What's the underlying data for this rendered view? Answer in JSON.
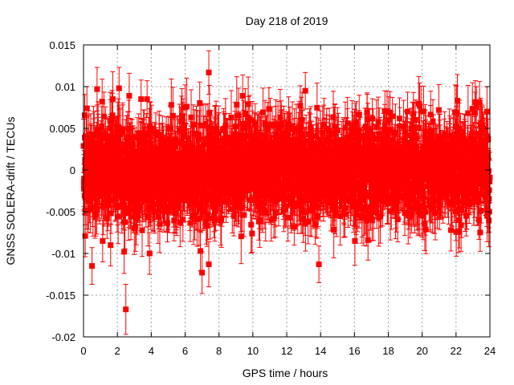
{
  "chart_data": {
    "type": "scatter",
    "title": "Day 218 of 2019",
    "xlabel": "GPS time / hours",
    "ylabel": "GNSS SOLERA-drift / TECUs",
    "xlim": [
      0,
      24
    ],
    "ylim": [
      -0.02,
      0.015
    ],
    "x_ticks": [
      0,
      2,
      4,
      6,
      8,
      10,
      12,
      14,
      16,
      18,
      20,
      22,
      24
    ],
    "x_tick_labels": [
      "0",
      "2",
      "4",
      "6",
      "8",
      "10",
      "12",
      "14",
      "16",
      "18",
      "20",
      "22",
      "24"
    ],
    "y_ticks": [
      -0.02,
      -0.015,
      -0.01,
      -0.005,
      0,
      0.005,
      0.01,
      0.015
    ],
    "y_tick_labels": [
      "-0.02",
      "-0.015",
      "-0.01",
      "-0.005",
      "0",
      "0.005",
      "0.01",
      "0.015"
    ],
    "grid": true,
    "series": [
      {
        "name": "SOLERA drift",
        "color": "#ff0000",
        "marker": "square",
        "error_bars": true,
        "dense_noise": {
          "count": 2600,
          "x_range": [
            0,
            24
          ],
          "mean": 0.0,
          "std": 0.0028,
          "err_min": 0.0022,
          "err_max": 0.0035
        },
        "points": [
          {
            "x": 2.5,
            "y": -0.0167,
            "err": 0.003
          },
          {
            "x": 0.5,
            "y": -0.0115,
            "err": 0.0022
          },
          {
            "x": 7.0,
            "y": -0.0123,
            "err": 0.0025
          },
          {
            "x": 7.4,
            "y": -0.0113,
            "err": 0.0027
          },
          {
            "x": 3.9,
            "y": -0.01,
            "err": 0.0025
          },
          {
            "x": 2.4,
            "y": -0.0098,
            "err": 0.0026
          },
          {
            "x": 6.9,
            "y": -0.0097,
            "err": 0.0024
          },
          {
            "x": 13.9,
            "y": -0.0113,
            "err": 0.0022
          },
          {
            "x": 0.1,
            "y": -0.0079,
            "err": 0.0025
          },
          {
            "x": 1.6,
            "y": -0.009,
            "err": 0.0025
          },
          {
            "x": 16.8,
            "y": -0.0084,
            "err": 0.0024
          },
          {
            "x": 21.7,
            "y": -0.0072,
            "err": 0.0025
          },
          {
            "x": 7.4,
            "y": 0.0117,
            "err": 0.0026
          },
          {
            "x": 0.8,
            "y": 0.0097,
            "err": 0.0026
          },
          {
            "x": 2.1,
            "y": 0.0098,
            "err": 0.0025
          },
          {
            "x": 13.1,
            "y": 0.0095,
            "err": 0.0022
          },
          {
            "x": 9.4,
            "y": 0.0089,
            "err": 0.0025
          },
          {
            "x": 2.7,
            "y": 0.0089,
            "err": 0.0027
          },
          {
            "x": 0.2,
            "y": 0.0074,
            "err": 0.0026
          },
          {
            "x": 23.2,
            "y": 0.0076,
            "err": 0.0024
          },
          {
            "x": 12.8,
            "y": 0.0077,
            "err": 0.0024
          },
          {
            "x": 1.1,
            "y": 0.0082,
            "err": 0.0027
          },
          {
            "x": 17.8,
            "y": 0.0071,
            "err": 0.0024
          },
          {
            "x": 18.1,
            "y": 0.0069,
            "err": 0.0025
          },
          {
            "x": 16.1,
            "y": 0.0057,
            "err": 0.0025
          },
          {
            "x": 19.6,
            "y": 0.006,
            "err": 0.0024
          },
          {
            "x": 22.6,
            "y": -0.0055,
            "err": 0.0024
          },
          {
            "x": 23.9,
            "y": -0.005,
            "err": 0.0025
          }
        ]
      }
    ]
  }
}
